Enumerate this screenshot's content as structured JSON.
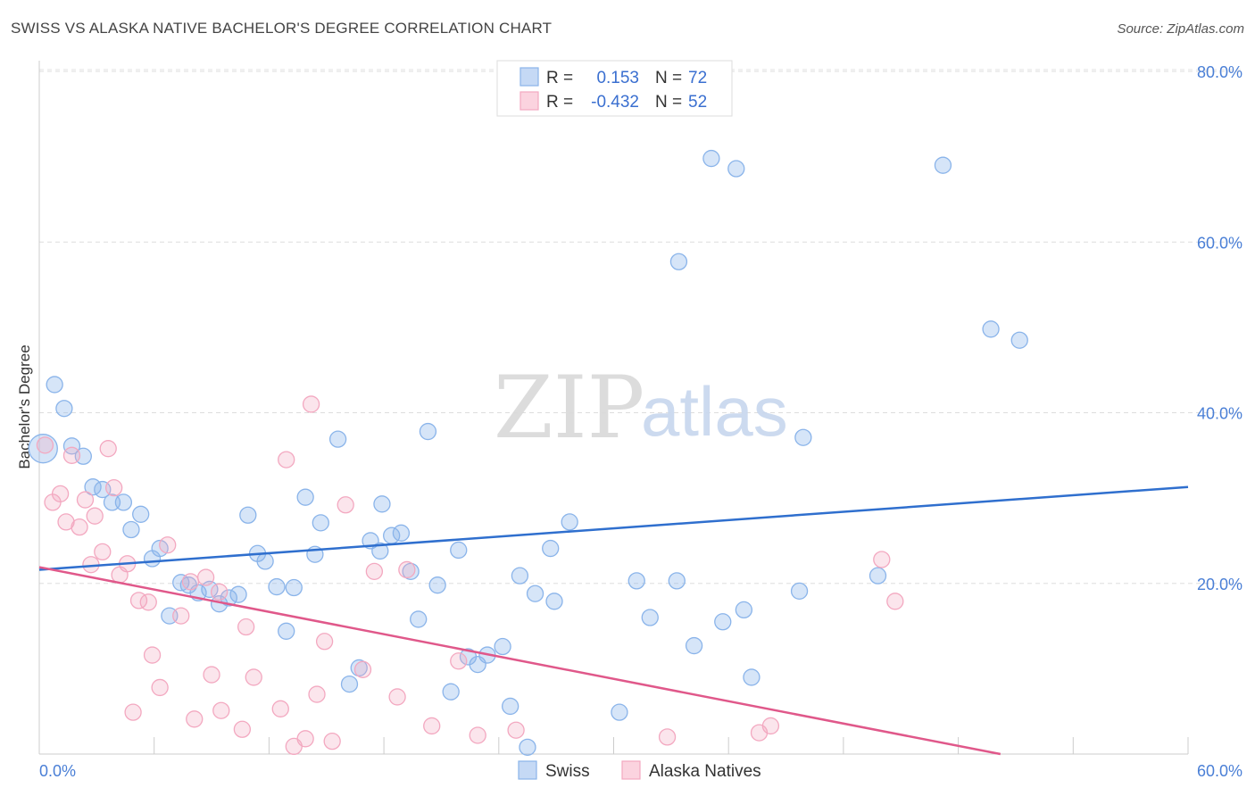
{
  "header": {
    "title": "SWISS VS ALASKA NATIVE BACHELOR'S DEGREE CORRELATION CHART",
    "source": "Source: ZipAtlas.com"
  },
  "watermark": {
    "part1": "ZIP",
    "part2": "atlas"
  },
  "legend": {
    "r_label": "R =",
    "n_label": "N =",
    "series": [
      {
        "name": "Swiss",
        "r": "0.153",
        "n": "72",
        "color": "#8ab4ea"
      },
      {
        "name": "Alaska Natives",
        "r": "-0.432",
        "n": "52",
        "color": "#f3a8c0"
      }
    ]
  },
  "chart_data": {
    "type": "scatter",
    "title": "SWISS VS ALASKA NATIVE BACHELOR'S DEGREE CORRELATION CHART",
    "xlabel": "",
    "ylabel": "Bachelor's Degree",
    "xlim": [
      0,
      60
    ],
    "ylim": [
      0,
      80
    ],
    "x_ticks": [
      "0.0%",
      "60.0%"
    ],
    "y_ticks": [
      {
        "value": 20,
        "label": "20.0%"
      },
      {
        "value": 40,
        "label": "40.0%"
      },
      {
        "value": 60,
        "label": "60.0%"
      },
      {
        "value": 80,
        "label": "80.0%"
      }
    ],
    "series": [
      {
        "name": "Swiss",
        "color": "#8ab4ea",
        "line_color": "#2f6fce",
        "trend": {
          "x": [
            0,
            60
          ],
          "y": [
            21.6,
            31.3
          ]
        },
        "points": [
          {
            "x": 0.8,
            "y": 43.3
          },
          {
            "x": 1.3,
            "y": 40.5
          },
          {
            "x": 1.7,
            "y": 36.1
          },
          {
            "x": 2.3,
            "y": 34.9
          },
          {
            "x": 2.8,
            "y": 31.3
          },
          {
            "x": 3.3,
            "y": 31.0
          },
          {
            "x": 3.8,
            "y": 29.5
          },
          {
            "x": 4.4,
            "y": 29.5
          },
          {
            "x": 4.8,
            "y": 26.3
          },
          {
            "x": 5.3,
            "y": 28.1
          },
          {
            "x": 5.9,
            "y": 22.9
          },
          {
            "x": 6.3,
            "y": 24.1
          },
          {
            "x": 6.8,
            "y": 16.2
          },
          {
            "x": 7.4,
            "y": 20.1
          },
          {
            "x": 7.8,
            "y": 19.8
          },
          {
            "x": 8.3,
            "y": 18.9
          },
          {
            "x": 8.9,
            "y": 19.3
          },
          {
            "x": 9.4,
            "y": 17.6
          },
          {
            "x": 9.9,
            "y": 18.3
          },
          {
            "x": 10.4,
            "y": 18.7
          },
          {
            "x": 10.9,
            "y": 28.0
          },
          {
            "x": 11.4,
            "y": 23.5
          },
          {
            "x": 11.8,
            "y": 22.6
          },
          {
            "x": 12.4,
            "y": 19.6
          },
          {
            "x": 12.9,
            "y": 14.4
          },
          {
            "x": 13.3,
            "y": 19.5
          },
          {
            "x": 13.9,
            "y": 30.1
          },
          {
            "x": 14.4,
            "y": 23.4
          },
          {
            "x": 14.7,
            "y": 27.1
          },
          {
            "x": 15.6,
            "y": 36.9
          },
          {
            "x": 16.2,
            "y": 8.2
          },
          {
            "x": 16.7,
            "y": 10.1
          },
          {
            "x": 17.3,
            "y": 25.0
          },
          {
            "x": 17.8,
            "y": 23.8
          },
          {
            "x": 17.9,
            "y": 29.3
          },
          {
            "x": 18.4,
            "y": 25.6
          },
          {
            "x": 18.9,
            "y": 25.9
          },
          {
            "x": 19.4,
            "y": 21.4
          },
          {
            "x": 19.8,
            "y": 15.8
          },
          {
            "x": 20.3,
            "y": 37.8
          },
          {
            "x": 20.8,
            "y": 19.8
          },
          {
            "x": 21.5,
            "y": 7.3
          },
          {
            "x": 21.9,
            "y": 23.9
          },
          {
            "x": 22.4,
            "y": 11.4
          },
          {
            "x": 22.9,
            "y": 10.5
          },
          {
            "x": 23.4,
            "y": 11.6
          },
          {
            "x": 24.2,
            "y": 12.6
          },
          {
            "x": 24.6,
            "y": 5.6
          },
          {
            "x": 25.1,
            "y": 20.9
          },
          {
            "x": 25.5,
            "y": 0.8
          },
          {
            "x": 25.9,
            "y": 18.8
          },
          {
            "x": 26.7,
            "y": 24.1
          },
          {
            "x": 26.9,
            "y": 17.9
          },
          {
            "x": 27.7,
            "y": 27.2
          },
          {
            "x": 30.3,
            "y": 4.9
          },
          {
            "x": 31.2,
            "y": 20.3
          },
          {
            "x": 31.9,
            "y": 16.0
          },
          {
            "x": 33.3,
            "y": 20.3
          },
          {
            "x": 33.4,
            "y": 57.7
          },
          {
            "x": 34.2,
            "y": 12.7
          },
          {
            "x": 35.1,
            "y": 69.8
          },
          {
            "x": 35.7,
            "y": 15.5
          },
          {
            "x": 36.4,
            "y": 68.6
          },
          {
            "x": 36.8,
            "y": 16.9
          },
          {
            "x": 37.2,
            "y": 9.0
          },
          {
            "x": 39.7,
            "y": 19.1
          },
          {
            "x": 39.9,
            "y": 37.1
          },
          {
            "x": 43.8,
            "y": 20.9
          },
          {
            "x": 47.2,
            "y": 69.0
          },
          {
            "x": 49.7,
            "y": 49.8
          },
          {
            "x": 51.2,
            "y": 48.5
          },
          {
            "x": 0.2,
            "y": 35.8
          }
        ]
      },
      {
        "name": "Alaska Natives",
        "color": "#f3a8c0",
        "line_color": "#e0588a",
        "trend": {
          "x": [
            0,
            50.2
          ],
          "y": [
            21.9,
            0
          ]
        },
        "points": [
          {
            "x": 0.3,
            "y": 36.2
          },
          {
            "x": 0.7,
            "y": 29.5
          },
          {
            "x": 1.1,
            "y": 30.5
          },
          {
            "x": 1.4,
            "y": 27.2
          },
          {
            "x": 1.7,
            "y": 35.0
          },
          {
            "x": 2.1,
            "y": 26.6
          },
          {
            "x": 2.4,
            "y": 29.8
          },
          {
            "x": 2.7,
            "y": 22.2
          },
          {
            "x": 2.9,
            "y": 27.9
          },
          {
            "x": 3.3,
            "y": 23.7
          },
          {
            "x": 3.6,
            "y": 35.8
          },
          {
            "x": 3.9,
            "y": 31.2
          },
          {
            "x": 4.2,
            "y": 21.0
          },
          {
            "x": 4.6,
            "y": 22.3
          },
          {
            "x": 4.9,
            "y": 4.9
          },
          {
            "x": 5.2,
            "y": 18.0
          },
          {
            "x": 5.7,
            "y": 17.8
          },
          {
            "x": 5.9,
            "y": 11.6
          },
          {
            "x": 6.3,
            "y": 7.8
          },
          {
            "x": 6.7,
            "y": 24.5
          },
          {
            "x": 7.4,
            "y": 16.2
          },
          {
            "x": 7.9,
            "y": 20.2
          },
          {
            "x": 8.1,
            "y": 4.1
          },
          {
            "x": 8.7,
            "y": 20.7
          },
          {
            "x": 9.0,
            "y": 9.3
          },
          {
            "x": 9.4,
            "y": 19.0
          },
          {
            "x": 9.5,
            "y": 5.1
          },
          {
            "x": 10.6,
            "y": 2.9
          },
          {
            "x": 10.8,
            "y": 14.9
          },
          {
            "x": 11.2,
            "y": 9.0
          },
          {
            "x": 12.6,
            "y": 5.3
          },
          {
            "x": 12.9,
            "y": 34.5
          },
          {
            "x": 13.3,
            "y": 0.9
          },
          {
            "x": 13.9,
            "y": 1.8
          },
          {
            "x": 14.5,
            "y": 7.0
          },
          {
            "x": 14.9,
            "y": 13.2
          },
          {
            "x": 15.3,
            "y": 1.5
          },
          {
            "x": 16.0,
            "y": 29.2
          },
          {
            "x": 16.9,
            "y": 9.9
          },
          {
            "x": 17.5,
            "y": 21.4
          },
          {
            "x": 18.7,
            "y": 6.7
          },
          {
            "x": 19.2,
            "y": 21.6
          },
          {
            "x": 20.5,
            "y": 3.3
          },
          {
            "x": 21.9,
            "y": 10.9
          },
          {
            "x": 22.9,
            "y": 2.2
          },
          {
            "x": 24.9,
            "y": 2.8
          },
          {
            "x": 32.8,
            "y": 2.0
          },
          {
            "x": 37.6,
            "y": 2.5
          },
          {
            "x": 38.2,
            "y": 3.3
          },
          {
            "x": 44.0,
            "y": 22.8
          },
          {
            "x": 44.7,
            "y": 17.9
          },
          {
            "x": 14.2,
            "y": 41.0
          }
        ]
      }
    ]
  }
}
